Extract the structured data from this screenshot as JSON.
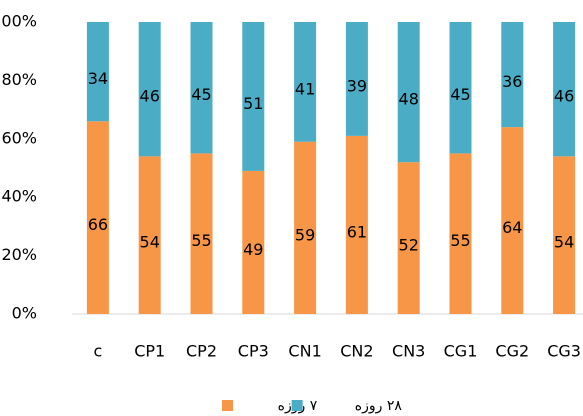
{
  "chart_data": {
    "type": "stacked_bar",
    "categories": [
      "c",
      "CP1",
      "CP2",
      "CP3",
      "CN1",
      "CN2",
      "CN3",
      "CG1",
      "CG2",
      "CG3"
    ],
    "series": [
      {
        "name": "۷ روزه",
        "color": "#f79646",
        "values": [
          66,
          54,
          55,
          49,
          59,
          61,
          52,
          55,
          64,
          54
        ]
      },
      {
        "name": "۲۸ روزه",
        "color": "#4bacc6",
        "values": [
          34,
          46,
          45,
          51,
          41,
          39,
          48,
          45,
          36,
          46
        ]
      }
    ],
    "ylim": [
      0,
      100
    ],
    "yticks": [
      {
        "value": 0,
        "label": "0%"
      },
      {
        "value": 20,
        "label": "20%"
      },
      {
        "value": 40,
        "label": "40%"
      },
      {
        "value": 60,
        "label": "60%"
      },
      {
        "value": 80,
        "label": "80%"
      },
      {
        "value": 100,
        "label": "100%"
      }
    ],
    "grid": false,
    "legend": "bottom"
  }
}
